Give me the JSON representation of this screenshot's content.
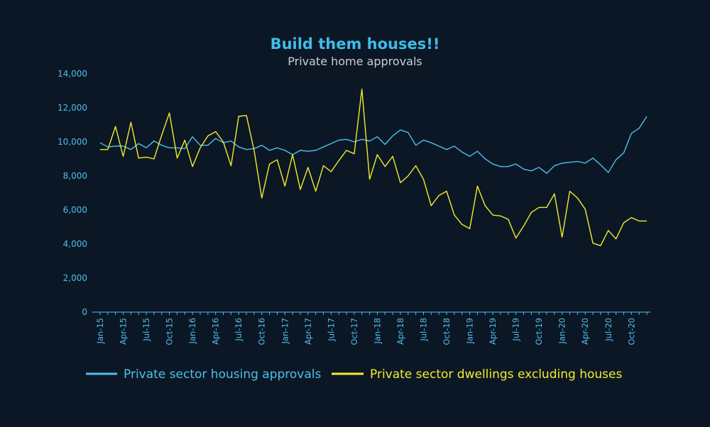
{
  "chart_data": {
    "type": "line",
    "title": "Build them houses!!",
    "subtitle": "Private home approvals",
    "xlabel": "",
    "ylabel": "",
    "ylim": [
      0,
      14000
    ],
    "yticks": [
      0,
      2000,
      4000,
      6000,
      8000,
      10000,
      12000,
      14000
    ],
    "ytick_labels": [
      "0",
      "2,000",
      "4,000",
      "6,000",
      "8,000",
      "10,000",
      "12,000",
      "14,000"
    ],
    "x": [
      "Jan-15",
      "Feb-15",
      "Mar-15",
      "Apr-15",
      "May-15",
      "Jun-15",
      "Jul-15",
      "Aug-15",
      "Sep-15",
      "Oct-15",
      "Nov-15",
      "Dec-15",
      "Jan-16",
      "Feb-16",
      "Mar-16",
      "Apr-16",
      "May-16",
      "Jun-16",
      "Jul-16",
      "Aug-16",
      "Sep-16",
      "Oct-16",
      "Nov-16",
      "Dec-16",
      "Jan-17",
      "Feb-17",
      "Mar-17",
      "Apr-17",
      "May-17",
      "Jun-17",
      "Jul-17",
      "Aug-17",
      "Sep-17",
      "Oct-17",
      "Nov-17",
      "Dec-17",
      "Jan-18",
      "Feb-18",
      "Mar-18",
      "Apr-18",
      "May-18",
      "Jun-18",
      "Jul-18",
      "Aug-18",
      "Sep-18",
      "Oct-18",
      "Nov-18",
      "Dec-18",
      "Jan-19",
      "Feb-19",
      "Mar-19",
      "Apr-19",
      "May-19",
      "Jun-19",
      "Jul-19",
      "Aug-19",
      "Sep-19",
      "Oct-19",
      "Nov-19",
      "Dec-19",
      "Jan-20",
      "Feb-20",
      "Mar-20",
      "Apr-20",
      "May-20",
      "Jun-20",
      "Jul-20",
      "Aug-20",
      "Sep-20",
      "Oct-20",
      "Nov-20",
      "Dec-20"
    ],
    "tick_every": 3,
    "series": [
      {
        "name": "Private sector housing approvals",
        "color": "#4cc0ec",
        "values": [
          9950,
          9700,
          9750,
          9750,
          9550,
          9900,
          9650,
          10050,
          9800,
          9650,
          9650,
          9600,
          10300,
          9800,
          9800,
          10200,
          9950,
          10050,
          9700,
          9550,
          9600,
          9800,
          9500,
          9650,
          9500,
          9250,
          9500,
          9450,
          9500,
          9700,
          9900,
          10100,
          10150,
          10000,
          10150,
          10050,
          10300,
          9850,
          10350,
          10700,
          10550,
          9800,
          10100,
          9950,
          9750,
          9550,
          9750,
          9400,
          9150,
          9450,
          9000,
          8700,
          8550,
          8550,
          8700,
          8400,
          8300,
          8500,
          8150,
          8600,
          8750,
          8800,
          8850,
          8750,
          9050,
          8650,
          8200,
          8950,
          9350,
          10500,
          10800,
          11500
        ]
      },
      {
        "name": "Private sector dwellings excluding houses",
        "color": "#f2ec2c",
        "values": [
          9550,
          9550,
          10900,
          9150,
          11150,
          9050,
          9100,
          9000,
          10400,
          11700,
          9050,
          10100,
          8550,
          9650,
          10350,
          10600,
          10000,
          8600,
          11500,
          11550,
          9500,
          6700,
          8700,
          8950,
          7400,
          9250,
          7200,
          8500,
          7100,
          8600,
          8250,
          8900,
          9500,
          9300,
          13100,
          7800,
          9250,
          8550,
          9150,
          7600,
          8000,
          8600,
          7800,
          6250,
          6850,
          7100,
          5700,
          5150,
          4900,
          7400,
          6250,
          5700,
          5650,
          5450,
          4350,
          5050,
          5850,
          6150,
          6150,
          6950,
          4400,
          7100,
          6700,
          6050,
          4050,
          3900,
          4800,
          4300,
          5250,
          5550,
          5350,
          5350
        ]
      }
    ],
    "legend": {
      "placement": "bottom",
      "entries": [
        "Private sector housing approvals",
        "Private sector dwellings excluding houses"
      ]
    },
    "grid": false
  }
}
